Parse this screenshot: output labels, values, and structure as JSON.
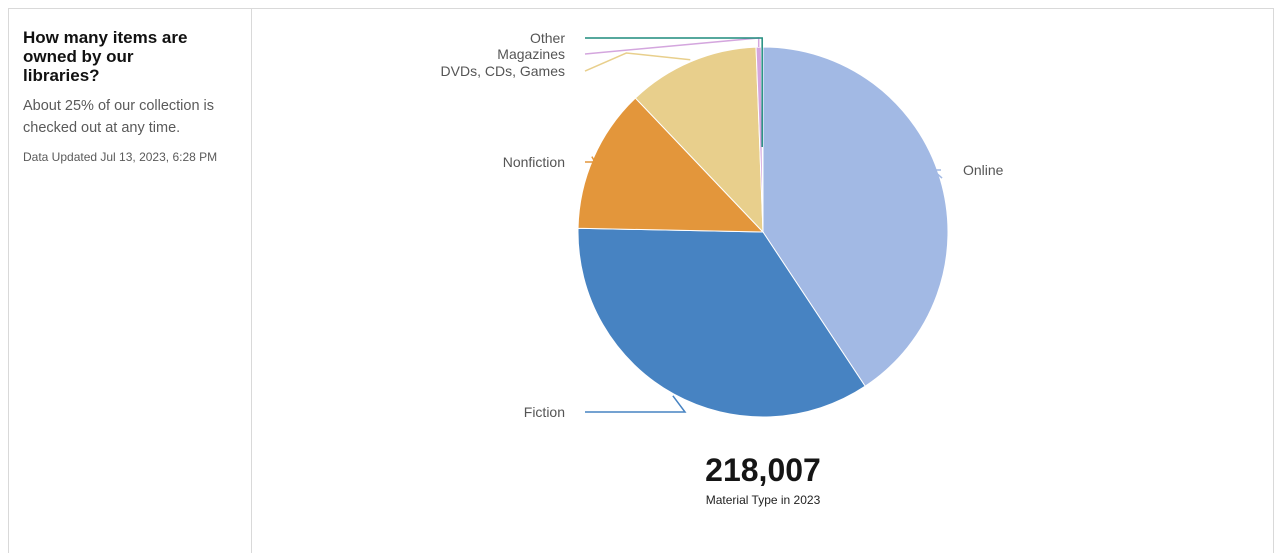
{
  "panel": {
    "title": "How many items are owned by our libraries?",
    "subtitle": "About 25% of our collection is checked out at any time.",
    "updated": "Data Updated Jul 13, 2023, 6:28 PM"
  },
  "summary": {
    "total": "218,007",
    "caption": "Material Type in 2023"
  },
  "chart_data": {
    "type": "pie",
    "title": "",
    "total": 218007,
    "slices": [
      {
        "label": "Online",
        "value": 88700,
        "color": "#a2b9e4"
      },
      {
        "label": "Fiction",
        "value": 75500,
        "color": "#4783c2"
      },
      {
        "label": "Nonfiction",
        "value": 27400,
        "color": "#e3963b"
      },
      {
        "label": "DVDs, CDs, Games",
        "value": 25100,
        "color": "#e8cf8c"
      },
      {
        "label": "Magazines",
        "value": 1000,
        "color": "#d4a6de"
      },
      {
        "label": "Other",
        "value": 307,
        "color": "#1f8c7d"
      }
    ],
    "legend": "none (direct labels with leader lines)"
  }
}
